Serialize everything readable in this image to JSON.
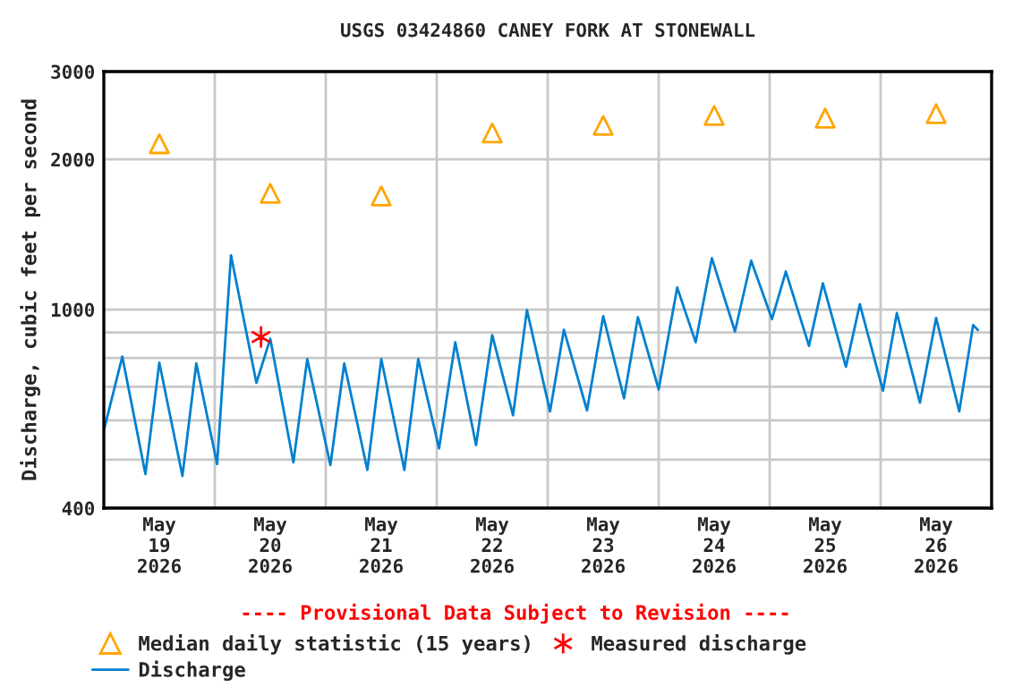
{
  "chart_data": {
    "type": "line",
    "title": "USGS 03424860 CANEY FORK AT STONEWALL",
    "ylabel": "Discharge, cubic feet per second",
    "annotations": [
      "---- Provisional Data Subject to Revision ----"
    ],
    "log": "y",
    "xlim": [
      "2026-05-19T00:00",
      "2026-05-27T00:00"
    ],
    "xticks": [
      {
        "value": "2026-05-19T00:00",
        "label": null
      },
      {
        "value": "2026-05-19T12:00",
        "label": "May\n19\n2026"
      },
      {
        "value": "2026-05-20T00:00",
        "label": null
      },
      {
        "value": "2026-05-20T12:00",
        "label": "May\n20\n2026"
      },
      {
        "value": "2026-05-21T00:00",
        "label": null
      },
      {
        "value": "2026-05-21T12:00",
        "label": "May\n21\n2026"
      },
      {
        "value": "2026-05-22T00:00",
        "label": null
      },
      {
        "value": "2026-05-22T12:00",
        "label": "May\n22\n2026"
      },
      {
        "value": "2026-05-23T00:00",
        "label": null
      },
      {
        "value": "2026-05-23T12:00",
        "label": "May\n23\n2026"
      },
      {
        "value": "2026-05-24T00:00",
        "label": null
      },
      {
        "value": "2026-05-24T12:00",
        "label": "May\n24\n2026"
      },
      {
        "value": "2026-05-25T00:00",
        "label": null
      },
      {
        "value": "2026-05-25T12:00",
        "label": "May\n25\n2026"
      },
      {
        "value": "2026-05-26T00:00",
        "label": null
      },
      {
        "value": "2026-05-26T12:00",
        "label": "May\n26\n2026"
      },
      {
        "value": "2026-05-27T00:00",
        "label": null
      }
    ],
    "ylim": [
      400,
      3000
    ],
    "yticks": [
      400,
      {
        "value": 500,
        "label": null
      },
      {
        "value": 600,
        "label": null
      },
      {
        "value": 700,
        "label": null
      },
      {
        "value": 800,
        "label": null
      },
      {
        "value": 900,
        "label": null
      },
      1000,
      2000,
      3000
    ],
    "grid": true,
    "legend": "bottom",
    "series": [
      {
        "name": "Median daily statistic (15 years)",
        "type": "scatter",
        "marker": "triangle",
        "color": "#ffa500",
        "x": [
          "2026-05-19T12:00",
          "2026-05-20T12:00",
          "2026-05-21T12:00",
          "2026-05-22T12:00",
          "2026-05-23T12:00",
          "2026-05-24T12:00",
          "2026-05-25T12:00",
          "2026-05-26T12:00"
        ],
        "values": [
          2150,
          1710,
          1690,
          2260,
          2340,
          2450,
          2420,
          2470
        ]
      },
      {
        "name": "Discharge",
        "color": "#0080d0",
        "x": [
          "2026-05-19T00:00",
          "2026-05-19T04:00",
          "2026-05-19T09:00",
          "2026-05-19T12:00",
          "2026-05-19T17:00",
          "2026-05-19T20:00",
          "2026-05-20T00:30",
          "2026-05-20T03:30",
          "2026-05-20T09:00",
          "2026-05-20T12:00",
          "2026-05-20T17:00",
          "2026-05-20T20:00",
          "2026-05-21T01:00",
          "2026-05-21T04:00",
          "2026-05-21T09:00",
          "2026-05-21T12:00",
          "2026-05-21T17:00",
          "2026-05-21T20:00",
          "2026-05-22T00:30",
          "2026-05-22T04:00",
          "2026-05-22T08:30",
          "2026-05-22T12:00",
          "2026-05-22T16:30",
          "2026-05-22T19:30",
          "2026-05-23T00:30",
          "2026-05-23T03:30",
          "2026-05-23T08:30",
          "2026-05-23T12:00",
          "2026-05-23T16:30",
          "2026-05-23T19:30",
          "2026-05-24T00:00",
          "2026-05-24T04:00",
          "2026-05-24T08:00",
          "2026-05-24T11:30",
          "2026-05-24T16:30",
          "2026-05-24T20:00",
          "2026-05-25T00:30",
          "2026-05-25T03:30",
          "2026-05-25T08:30",
          "2026-05-25T11:30",
          "2026-05-25T16:30",
          "2026-05-25T19:30",
          "2026-05-26T00:30",
          "2026-05-26T03:30",
          "2026-05-26T08:30",
          "2026-05-26T12:00",
          "2026-05-26T17:00",
          "2026-05-26T20:00",
          "2026-05-26T21:00"
        ],
        "values": [
          572,
          805,
          468,
          783,
          464,
          780,
          490,
          1285,
          713,
          874,
          494,
          796,
          488,
          780,
          477,
          796,
          477,
          796,
          527,
          860,
          535,
          889,
          614,
          998,
          625,
          911,
          628,
          970,
          664,
          965,
          692,
          1107,
          860,
          1268,
          904,
          1253,
          957,
          1192,
          846,
          1129,
          768,
          1025,
          688,
          984,
          651,
          962,
          625,
          931,
          911
        ]
      },
      {
        "name": "Measured discharge",
        "type": "scatter",
        "marker": "cross",
        "color": "#ff0000",
        "x": [
          "2026-05-20T10:00"
        ],
        "values": [
          881
        ]
      }
    ]
  }
}
